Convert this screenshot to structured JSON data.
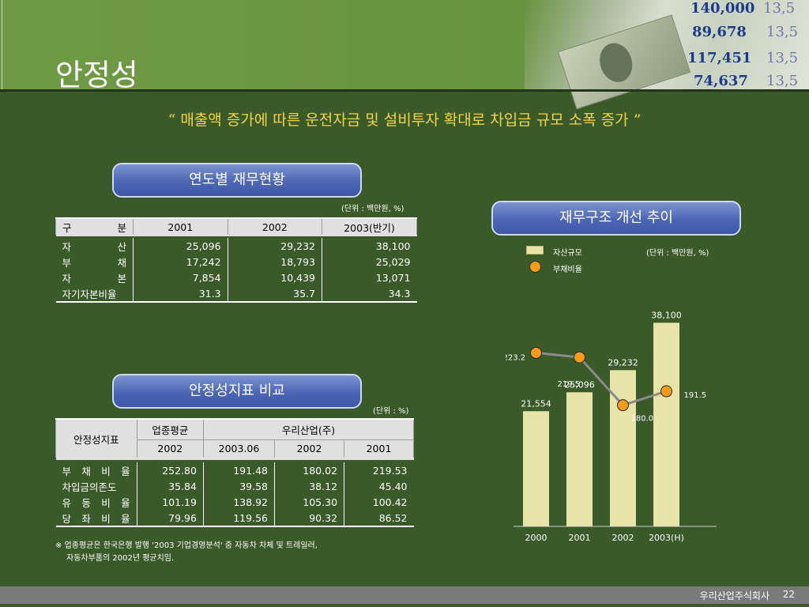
{
  "page": {
    "title": "안정성",
    "subtitle": "“ 매출액 증가에 따른 운전자금 및 설비투자 확대로 차입금 규모 소폭 증가 ”",
    "company": "우리산업주식회사",
    "page_number": "22"
  },
  "header_numbers": [
    "140,000",
    "89,678",
    "117,451",
    "74,637",
    "13,5",
    "13,5",
    "13,5",
    "13,5"
  ],
  "financial_table": {
    "heading": "연도별 재무현황",
    "unit": "(단위 : 백만원, %)",
    "headers": [
      "구 분",
      "2001",
      "2002",
      "2003(반기)"
    ],
    "rows": [
      {
        "label": "자 산",
        "values": [
          "25,096",
          "29,232",
          "38,100"
        ]
      },
      {
        "label": "부 채",
        "values": [
          "17,242",
          "18,793",
          "25,029"
        ]
      },
      {
        "label": "자 본",
        "values": [
          "7,854",
          "10,439",
          "13,071"
        ]
      },
      {
        "label": "자기자본비율",
        "values": [
          "31.3",
          "35.7",
          "34.3"
        ]
      }
    ]
  },
  "stability_table": {
    "heading": "안정성지표 비교",
    "unit": "(단위 : %)",
    "col_label": "안정성지표",
    "group1": "업종평균",
    "group2": "우리산업(주)",
    "years": [
      "2002",
      "2003.06",
      "2002",
      "2001"
    ],
    "rows": [
      {
        "label": "부 채 비 율",
        "values": [
          "252.80",
          "191.48",
          "180.02",
          "219.53"
        ]
      },
      {
        "label": "차입금의존도",
        "values": [
          "35.84",
          "39.58",
          "38.12",
          "45.40"
        ]
      },
      {
        "label": "유 동 비 율",
        "values": [
          "101.19",
          "138.92",
          "105.30",
          "100.42"
        ]
      },
      {
        "label": "당 좌 비 율",
        "values": [
          "79.96",
          "119.56",
          "90.32",
          "86.52"
        ]
      }
    ],
    "footnote_1": "※ 업종평균은 한국은행 발행 '2003 기업경영분석' 중 자동차 차체 및 트레일러,",
    "footnote_2": "자동차부품의 2002년 평균치임."
  },
  "chart_data": {
    "type": "bar",
    "heading": "재무구조 개선 추이",
    "unit": "(단위 : 백만원, %)",
    "categories": [
      "2000",
      "2001",
      "2002",
      "2003(H)"
    ],
    "series": [
      {
        "name": "자산규모",
        "type": "bar",
        "values": [
          21554,
          25096,
          29232,
          38100
        ],
        "labels": [
          "21,554",
          "25,096",
          "29,232",
          "38,100"
        ],
        "color": "#e8e3a8"
      },
      {
        "name": "부채비율",
        "type": "line",
        "values": [
          223.2,
          219.5,
          180.0,
          191.5
        ],
        "labels": [
          "223.2",
          "219.5",
          "180.0",
          "191.5"
        ],
        "color": "#f59b1c"
      }
    ],
    "bar_ylim": [
      0,
      40000
    ],
    "line_ylim": [
      80,
      260
    ]
  }
}
